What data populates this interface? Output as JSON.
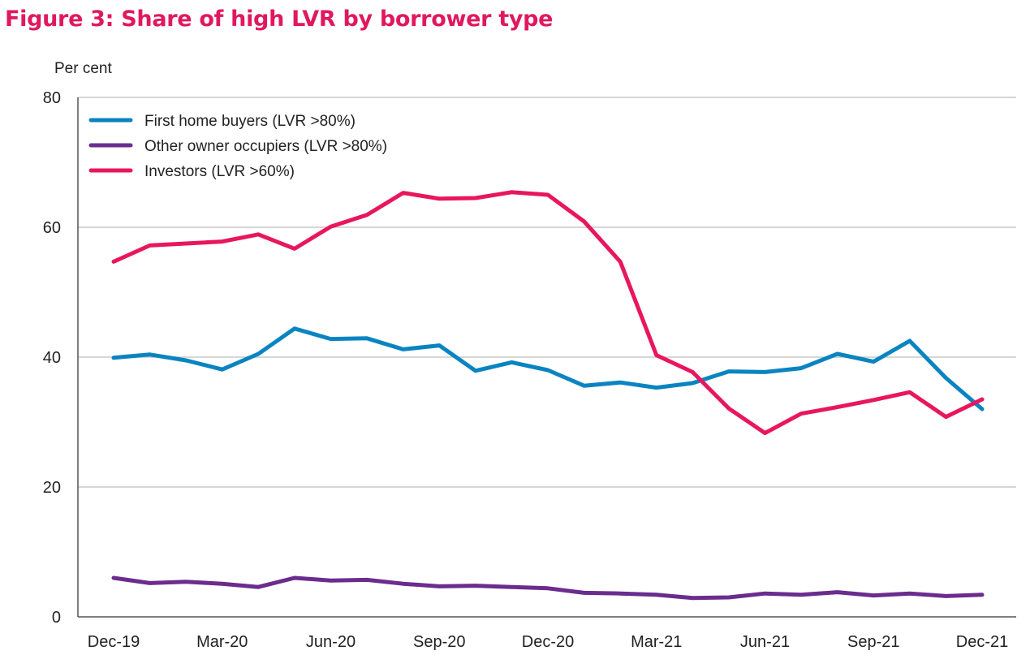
{
  "figure": {
    "title": "Figure 3:  Share of high LVR by borrower type",
    "title_color": "#e0185e"
  },
  "chart_data": {
    "type": "line",
    "title": "Figure 3:  Share of high LVR by borrower type",
    "ylabel": "Per cent",
    "xlabel": "",
    "ylim": [
      0,
      80
    ],
    "yticks": [
      0,
      20,
      40,
      60,
      80
    ],
    "grid": true,
    "legend_position": "top-left",
    "x": [
      "Dec-19",
      "Jan-20",
      "Feb-20",
      "Mar-20",
      "Apr-20",
      "May-20",
      "Jun-20",
      "Jul-20",
      "Aug-20",
      "Sep-20",
      "Oct-20",
      "Nov-20",
      "Dec-20",
      "Jan-21",
      "Feb-21",
      "Mar-21",
      "Apr-21",
      "May-21",
      "Jun-21",
      "Jul-21",
      "Aug-21",
      "Sep-21",
      "Oct-21",
      "Nov-21",
      "Dec-21"
    ],
    "xtick_labels": [
      "Dec-19",
      "Mar-20",
      "Jun-20",
      "Sep-20",
      "Dec-20",
      "Mar-21",
      "Jun-21",
      "Sep-21",
      "Dec-21"
    ],
    "series": [
      {
        "name": "First home buyers (LVR >80%)",
        "color": "#0a84c1",
        "values": [
          39.9,
          40.4,
          39.5,
          38.1,
          40.5,
          44.4,
          42.8,
          42.9,
          41.2,
          41.8,
          37.9,
          39.2,
          38.0,
          35.6,
          36.1,
          35.3,
          36.0,
          37.8,
          37.7,
          38.3,
          40.5,
          39.3,
          42.5,
          36.8,
          32.0
        ]
      },
      {
        "name": "Other owner occupiers (LVR >80%)",
        "color": "#6b2c8e",
        "values": [
          6.0,
          5.2,
          5.4,
          5.1,
          4.6,
          6.0,
          5.6,
          5.7,
          5.1,
          4.7,
          4.8,
          4.6,
          4.4,
          3.7,
          3.6,
          3.4,
          2.9,
          3.0,
          3.6,
          3.4,
          3.8,
          3.3,
          3.6,
          3.2,
          3.4
        ]
      },
      {
        "name": "Investors (LVR >60%)",
        "color": "#e8175d",
        "values": [
          54.7,
          57.2,
          57.5,
          57.8,
          58.9,
          56.7,
          60.1,
          61.9,
          65.3,
          64.4,
          64.5,
          65.4,
          65.0,
          60.9,
          54.7,
          40.3,
          37.7,
          32.1,
          28.3,
          31.3,
          32.3,
          33.4,
          34.6,
          30.8,
          33.5
        ]
      }
    ]
  }
}
